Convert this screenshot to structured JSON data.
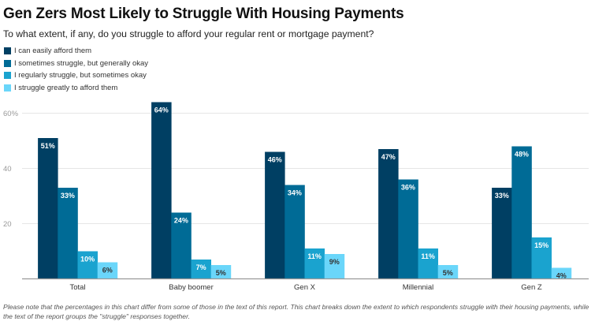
{
  "chart_data": {
    "type": "bar",
    "title": "Gen Zers Most Likely to Struggle With Housing Payments",
    "subtitle": "To what extent, if any, do you struggle to afford your regular rent or mortgage payment?",
    "xlabel": "",
    "ylabel": "",
    "ylim": [
      0,
      64
    ],
    "yticks": [
      20,
      40,
      60
    ],
    "ytick_labels": [
      "20",
      "40",
      "60%"
    ],
    "grid": true,
    "legend_position": "top-left",
    "categories": [
      "Total",
      "Baby boomer",
      "Gen X",
      "Millennial",
      "Gen Z"
    ],
    "series": [
      {
        "name": "I can easily afford them",
        "color": "#003f63",
        "label_color": "#ffffff",
        "values": [
          51,
          64,
          46,
          47,
          33
        ]
      },
      {
        "name": "I sometimes struggle, but generally okay",
        "color": "#006b96",
        "label_color": "#ffffff",
        "values": [
          33,
          24,
          34,
          36,
          48
        ]
      },
      {
        "name": "I regularly struggle, but sometimes okay",
        "color": "#1aa3cf",
        "label_color": "#ffffff",
        "values": [
          10,
          7,
          11,
          11,
          15
        ]
      },
      {
        "name": "I struggle greatly to afford them",
        "color": "#6ad6fa",
        "label_color": "#333333",
        "values": [
          6,
          5,
          9,
          5,
          4
        ]
      }
    ],
    "value_suffix": "%"
  },
  "footnote": "Please note that the percentages in this chart differ from some of those in the text of this report. This chart breaks down the extent to which respondents struggle with their housing payments, while the text of the report groups the \"struggle\" responses together."
}
